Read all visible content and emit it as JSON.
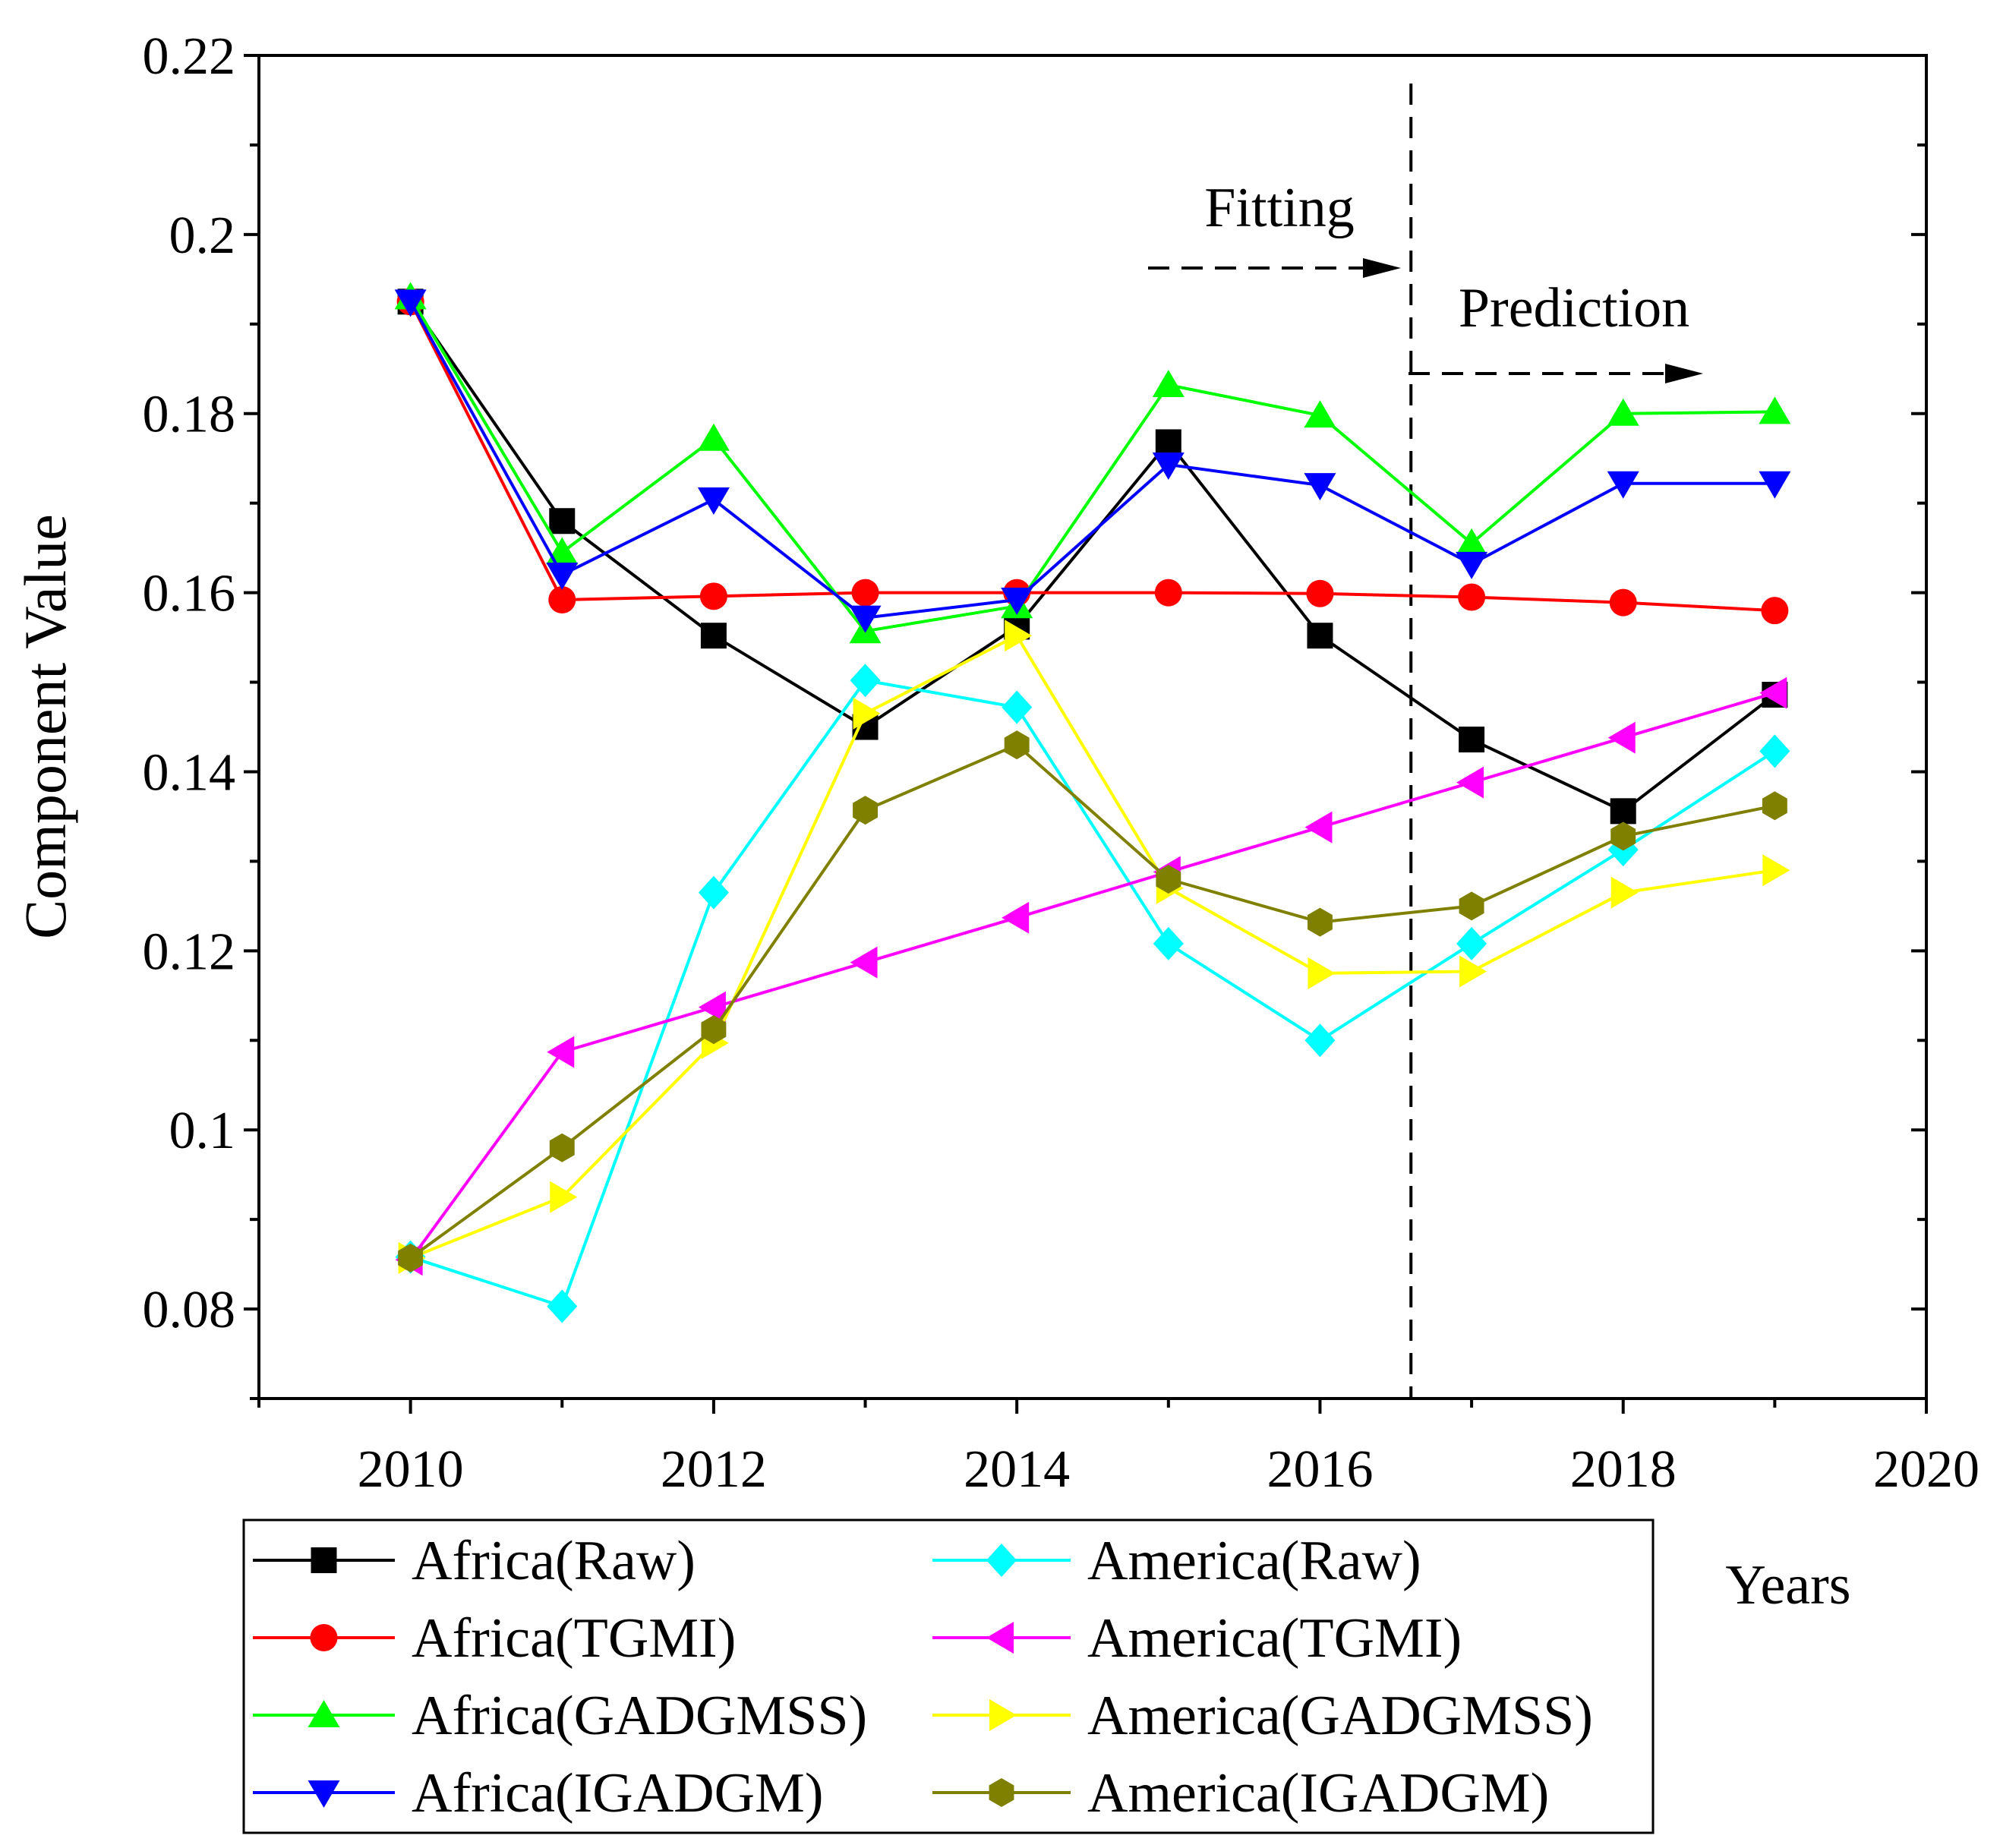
{
  "chart_data": {
    "type": "line",
    "title": "",
    "xlabel": "Years",
    "ylabel": "Component Value",
    "xlim": [
      2009,
      2020
    ],
    "ylim": [
      0.07,
      0.22
    ],
    "x_ticks": [
      2010,
      2012,
      2014,
      2016,
      2018,
      2020
    ],
    "x_tick_labels": [
      "2010",
      "2012",
      "2014",
      "2016",
      "2018",
      "2020"
    ],
    "y_ticks": [
      0.08,
      0.1,
      0.12,
      0.14,
      0.16,
      0.18,
      0.2,
      0.22
    ],
    "y_tick_labels": [
      "0.08",
      "0.1",
      "0.12",
      "0.14",
      "0.16",
      "0.18",
      "0.2",
      "0.22"
    ],
    "grid": false,
    "legend_position": "bottom",
    "x": [
      2010,
      2011,
      2012,
      2013,
      2014,
      2015,
      2016,
      2017,
      2018,
      2019
    ],
    "series": [
      {
        "name": "Africa(Raw)",
        "color": "#000000",
        "marker": "square",
        "values": [
          0.1925,
          0.168,
          0.1552,
          0.145,
          0.1562,
          0.1768,
          0.1552,
          0.1436,
          0.1356,
          0.1486
        ]
      },
      {
        "name": "Africa(TGMI)",
        "color": "#ff0000",
        "marker": "circle",
        "values": [
          0.1925,
          0.1592,
          0.1596,
          0.16,
          0.16,
          0.16,
          0.1599,
          0.1595,
          0.1589,
          0.158
        ]
      },
      {
        "name": "Africa(GADGMSS)",
        "color": "#00ff00",
        "marker": "triangle-up",
        "values": [
          0.193,
          0.1645,
          0.1772,
          0.1557,
          0.1585,
          0.1832,
          0.1798,
          0.1655,
          0.18,
          0.1802
        ]
      },
      {
        "name": "Africa(IGADGM)",
        "color": "#0000ff",
        "marker": "triangle-down",
        "values": [
          0.1925,
          0.162,
          0.1704,
          0.1572,
          0.1592,
          0.1743,
          0.172,
          0.1632,
          0.1722,
          0.1722
        ]
      },
      {
        "name": "America(Raw)",
        "color": "#00ffff",
        "marker": "diamond",
        "values": [
          0.0858,
          0.0803,
          0.1265,
          0.1502,
          0.1472,
          0.1208,
          0.11,
          0.1208,
          0.1313,
          0.1423
        ]
      },
      {
        "name": "America(TGMI)",
        "color": "#ff00ff",
        "marker": "triangle-left",
        "values": [
          0.0855,
          0.1087,
          0.1137,
          0.1187,
          0.1237,
          0.1288,
          0.1338,
          0.1388,
          0.1438,
          0.1488
        ]
      },
      {
        "name": "America(GADGMSS)",
        "color": "#ffff00",
        "marker": "triangle-right",
        "values": [
          0.0857,
          0.0925,
          0.1097,
          0.1465,
          0.1552,
          0.127,
          0.1175,
          0.1177,
          0.1265,
          0.129
        ]
      },
      {
        "name": "America(IGADGM)",
        "color": "#808000",
        "marker": "hexagon",
        "values": [
          0.0857,
          0.098,
          0.1112,
          0.1357,
          0.143,
          0.128,
          0.1232,
          0.125,
          0.1328,
          0.1362
        ]
      }
    ],
    "divider": {
      "x": 2016.6
    },
    "annotations": {
      "fitting": "Fitting",
      "prediction": "Prediction"
    }
  }
}
